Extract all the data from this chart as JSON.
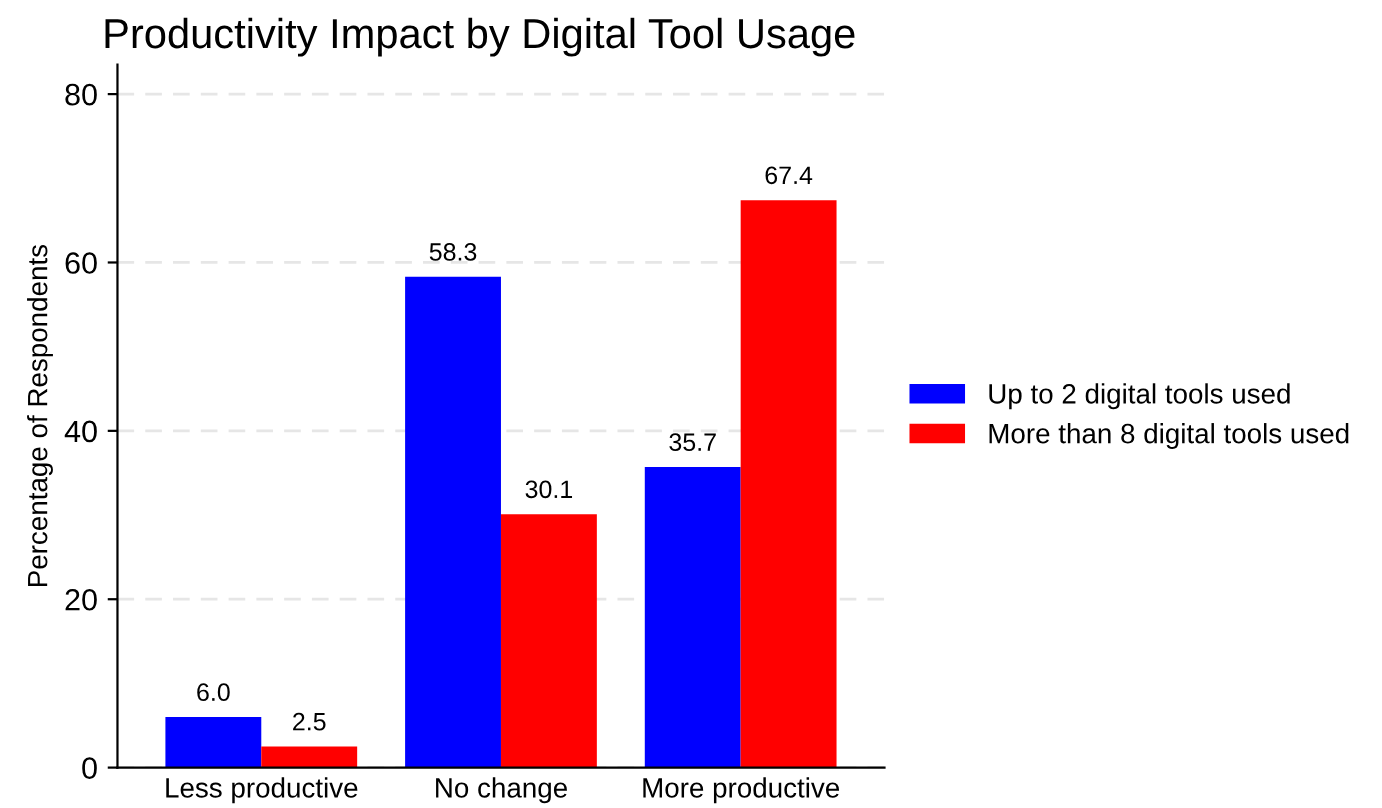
{
  "chart_data": {
    "type": "bar",
    "title": "Productivity Impact by Digital Tool Usage",
    "ylabel": "Percentage of Respondents",
    "categories": [
      "Less productive",
      "No change",
      "More productive"
    ],
    "series": [
      {
        "name": "Up to 2 digital tools used",
        "color": "#0000ff",
        "values": [
          6.0,
          58.3,
          35.7
        ],
        "value_labels": [
          "6.0",
          "58.3",
          "35.7"
        ]
      },
      {
        "name": "More than 8 digital tools used",
        "color": "#ff0000",
        "values": [
          2.5,
          30.1,
          67.4
        ],
        "value_labels": [
          "2.5",
          "30.1",
          "67.4"
        ]
      }
    ],
    "ylim": [
      0,
      83.5
    ],
    "yticks": [
      0,
      20,
      40,
      60,
      80
    ],
    "grid": "y",
    "legend": "right"
  }
}
